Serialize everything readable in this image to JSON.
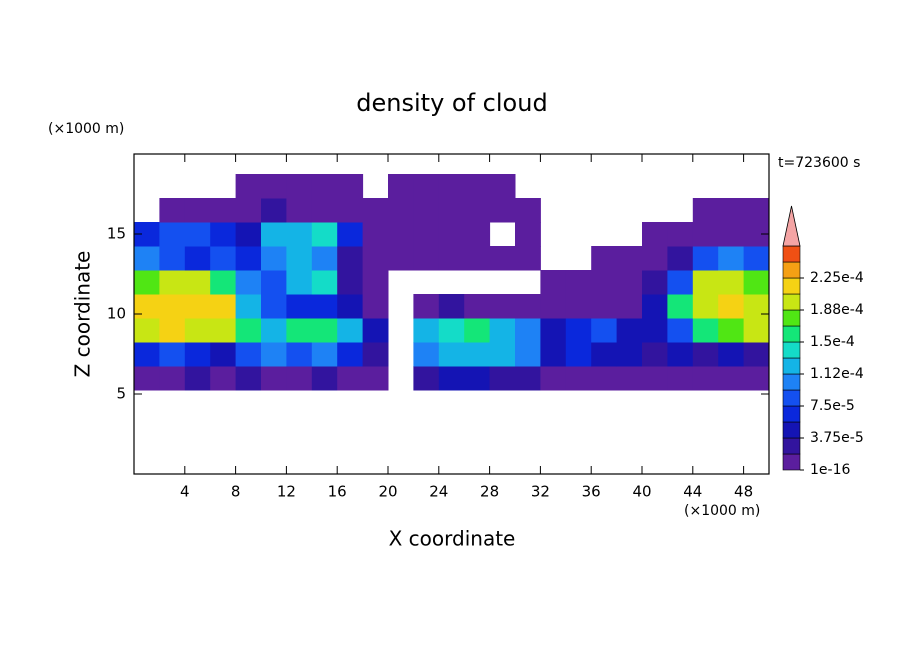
{
  "chart_data": {
    "type": "contour",
    "title": "density of cloud",
    "x_label": "X coordinate",
    "y_label": "Z coordinate",
    "x_unit": "(×1000 m)",
    "y_unit": "(×1000 m)",
    "time_label": "t=723600 s",
    "xlim": [
      0,
      50
    ],
    "ylim": [
      0,
      20
    ],
    "xticks": [
      4,
      8,
      12,
      16,
      20,
      24,
      28,
      32,
      36,
      40,
      44,
      48
    ],
    "yticks": [
      5,
      10,
      15
    ],
    "x": [
      1,
      3,
      5,
      7,
      9,
      11,
      13,
      15,
      17,
      19,
      21,
      23,
      25,
      27,
      29,
      31,
      33,
      35,
      37,
      39,
      41,
      43,
      45,
      47,
      49
    ],
    "z": [
      6,
      7.5,
      9,
      10.5,
      12,
      13.5,
      15,
      16.5,
      18
    ],
    "values": [
      [
        1e-05,
        1e-05,
        2e-05,
        1e-05,
        2e-05,
        1e-05,
        1e-05,
        2e-05,
        1e-05,
        1e-05,
        0,
        3e-05,
        4e-05,
        4e-05,
        3e-05,
        2e-05,
        1e-05,
        1e-05,
        1e-05,
        1e-05,
        1e-05,
        1e-05,
        1e-05,
        1e-05,
        1e-05
      ],
      [
        6e-05,
        8e-05,
        6e-05,
        5e-05,
        8e-05,
        0.0001,
        8e-05,
        0.0001,
        6e-05,
        2e-05,
        0,
        0.00011,
        0.00012,
        0.00013,
        0.00012,
        0.0001,
        4e-05,
        6e-05,
        5e-05,
        4e-05,
        3e-05,
        4e-05,
        3e-05,
        5e-05,
        3e-05
      ],
      [
        0.0002,
        0.00021,
        0.0002,
        0.00019,
        0.00016,
        0.00013,
        0.00015,
        0.00016,
        0.00013,
        5e-05,
        0,
        0.00012,
        0.00014,
        0.00016,
        0.00013,
        0.00011,
        5e-05,
        6e-05,
        9e-05,
        5e-05,
        4e-05,
        8e-05,
        0.00016,
        0.00018,
        0.00019
      ],
      [
        0.00021,
        0.00022,
        0.00022,
        0.00021,
        0.00012,
        8e-05,
        6e-05,
        7e-05,
        5e-05,
        1e-05,
        0,
        1e-05,
        2e-05,
        1e-05,
        1e-05,
        1e-05,
        1e-05,
        1e-05,
        1e-05,
        1e-05,
        5e-05,
        0.00016,
        0.0002,
        0.00021,
        0.00019
      ],
      [
        0.00018,
        0.00019,
        0.00019,
        0.00016,
        0.0001,
        9e-05,
        0.00012,
        0.00014,
        3e-05,
        1e-05,
        0,
        0,
        0,
        0,
        0,
        0,
        1e-05,
        1e-05,
        1e-05,
        1e-05,
        2e-05,
        9e-05,
        0.00019,
        0.0002,
        0.00018
      ],
      [
        0.0001,
        8e-05,
        7e-05,
        9e-05,
        6e-05,
        0.00011,
        0.00013,
        0.00011,
        2e-05,
        1e-05,
        1e-05,
        1e-05,
        1e-05,
        1e-05,
        1e-05,
        1e-05,
        0,
        0,
        1e-05,
        1e-05,
        1e-05,
        3e-05,
        8e-05,
        0.0001,
        9e-05
      ],
      [
        6e-05,
        8e-05,
        9e-05,
        7e-05,
        5e-05,
        0.00012,
        0.00013,
        0.00014,
        6e-05,
        1e-05,
        1e-05,
        1e-05,
        1e-05,
        1e-05,
        0,
        1e-05,
        0,
        0,
        0,
        0,
        1e-05,
        1e-05,
        1e-05,
        1e-05,
        1e-05
      ],
      [
        0,
        1e-05,
        1e-05,
        1e-05,
        1e-05,
        2e-05,
        1e-05,
        1e-05,
        1e-05,
        1e-05,
        1e-05,
        1e-05,
        1e-05,
        1e-05,
        1e-05,
        1e-05,
        0,
        0,
        0,
        0,
        0,
        0,
        1e-05,
        1e-05,
        1e-05
      ],
      [
        0,
        0,
        0,
        0,
        1e-05,
        1e-05,
        1e-05,
        1e-05,
        1e-05,
        0,
        1e-05,
        1e-05,
        1e-05,
        1e-05,
        1e-05,
        0,
        0,
        0,
        0,
        0,
        0,
        0,
        0,
        0,
        0
      ]
    ],
    "colorbar": {
      "levels": [
        1e-16,
        1.875e-05,
        3.75e-05,
        5.625e-05,
        7.5e-05,
        9.375e-05,
        0.0001125,
        0.00013125,
        0.00015,
        0.00016875,
        0.0001875,
        0.00020625,
        0.000225,
        0.00024375,
        0.0002625
      ],
      "colors": [
        "#5b1e9e",
        "#32149e",
        "#1414b4",
        "#0a28dc",
        "#1450f0",
        "#1e82f5",
        "#14b4e6",
        "#14dcc8",
        "#14e678",
        "#50e614",
        "#c8e614",
        "#f5d214",
        "#f5a014",
        "#f05014"
      ],
      "extend_color": "#f4a4a4",
      "ticks": [
        {
          "value": 1e-16,
          "label": "1e-16"
        },
        {
          "value": 3.75e-05,
          "label": "3.75e-5"
        },
        {
          "value": 7.5e-05,
          "label": "7.5e-5"
        },
        {
          "value": 0.0001125,
          "label": "1.12e-4"
        },
        {
          "value": 0.00015,
          "label": "1.5e-4"
        },
        {
          "value": 0.0001875,
          "label": "1.88e-4"
        },
        {
          "value": 0.000225,
          "label": "2.25e-4"
        }
      ]
    }
  }
}
